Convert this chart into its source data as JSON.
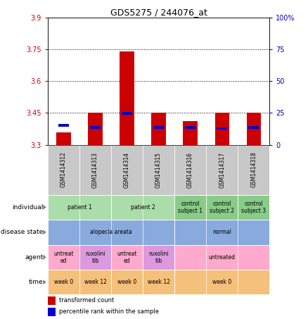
{
  "title": "GDS5275 / 244076_at",
  "samples": [
    "GSM1414312",
    "GSM1414313",
    "GSM1414314",
    "GSM1414315",
    "GSM1414316",
    "GSM1414317",
    "GSM1414318"
  ],
  "red_values": [
    3.36,
    3.45,
    3.74,
    3.45,
    3.41,
    3.45,
    3.45
  ],
  "blue_values": [
    3.385,
    3.375,
    3.44,
    3.375,
    3.375,
    3.37,
    3.375
  ],
  "y_min": 3.3,
  "y_max": 3.9,
  "y_ticks_red": [
    3.3,
    3.45,
    3.6,
    3.75,
    3.9
  ],
  "y_ticks_blue": [
    0,
    25,
    50,
    75,
    100
  ],
  "dotted_lines": [
    3.75,
    3.6,
    3.45
  ],
  "bar_color": "#CC0000",
  "blue_color": "#0000CC",
  "axis_color_red": "#CC0000",
  "axis_color_blue": "#0000CC",
  "sample_bg": "#C8C8C8",
  "individual_cells": [
    {
      "label": "patient 1",
      "start": 0,
      "end": 2,
      "color": "#AADDAA"
    },
    {
      "label": "patient 2",
      "start": 2,
      "end": 4,
      "color": "#AADDAA"
    },
    {
      "label": "control\nsubject 1",
      "start": 4,
      "end": 5,
      "color": "#88CC88"
    },
    {
      "label": "control\nsubject 2",
      "start": 5,
      "end": 6,
      "color": "#88CC88"
    },
    {
      "label": "control\nsubject 3",
      "start": 6,
      "end": 7,
      "color": "#88CC88"
    }
  ],
  "disease_cells": [
    {
      "label": "alopecia areata",
      "start": 0,
      "end": 4,
      "color": "#88AADD"
    },
    {
      "label": "normal",
      "start": 4,
      "end": 7,
      "color": "#88AADD"
    }
  ],
  "agent_cells": [
    {
      "label": "untreat\ned",
      "start": 0,
      "end": 1,
      "color": "#FFAACC"
    },
    {
      "label": "ruxolini\ntib",
      "start": 1,
      "end": 2,
      "color": "#DD99DD"
    },
    {
      "label": "untreat\ned",
      "start": 2,
      "end": 3,
      "color": "#FFAACC"
    },
    {
      "label": "ruxolini\ntib",
      "start": 3,
      "end": 4,
      "color": "#DD99DD"
    },
    {
      "label": "untreated",
      "start": 4,
      "end": 7,
      "color": "#FFAACC"
    }
  ],
  "time_cells": [
    {
      "label": "week 0",
      "start": 0,
      "end": 1,
      "color": "#F4C07A"
    },
    {
      "label": "week 12",
      "start": 1,
      "end": 2,
      "color": "#F4C07A"
    },
    {
      "label": "week 0",
      "start": 2,
      "end": 3,
      "color": "#F4C07A"
    },
    {
      "label": "week 12",
      "start": 3,
      "end": 4,
      "color": "#F4C07A"
    },
    {
      "label": "week 0",
      "start": 4,
      "end": 7,
      "color": "#F4C07A"
    }
  ],
  "row_labels": [
    "individual",
    "disease state",
    "agent",
    "time"
  ],
  "legend_red": "transformed count",
  "legend_blue": "percentile rank within the sample"
}
